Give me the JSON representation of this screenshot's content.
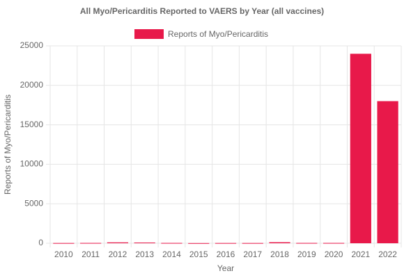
{
  "chart_data": {
    "type": "bar",
    "title": "All Myo/Pericarditis Reported to VAERS by Year (all vaccines)",
    "x_label": "Year",
    "y_label": "Reports of Myo/Pericarditis",
    "categories": [
      "2010",
      "2011",
      "2012",
      "2013",
      "2014",
      "2015",
      "2016",
      "2017",
      "2018",
      "2019",
      "2020",
      "2021",
      "2022"
    ],
    "series": [
      {
        "name": "Reports of Myo/Pericarditis",
        "color": "#e8194a",
        "values": [
          30,
          40,
          110,
          90,
          40,
          20,
          30,
          30,
          130,
          40,
          40,
          24000,
          18000
        ]
      }
    ],
    "ylim": [
      0,
      25000
    ],
    "yticks": [
      0,
      5000,
      10000,
      15000,
      20000,
      25000
    ],
    "grid": true,
    "legend": "top"
  }
}
